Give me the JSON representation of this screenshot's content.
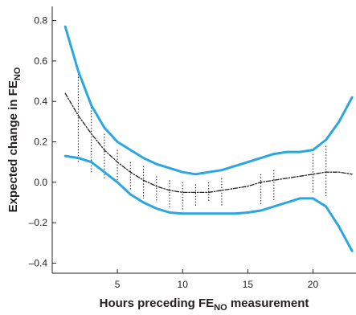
{
  "chart_data": {
    "type": "line",
    "xlabel": {
      "main": "Hours preceding FE",
      "sub": "NO",
      "suffix": " measurement"
    },
    "ylabel": {
      "main": "Expected change in FE",
      "sub": "NO"
    },
    "xlim": [
      0,
      23.3
    ],
    "ylim": [
      -0.45,
      0.87
    ],
    "xticks": [
      5,
      10,
      15,
      20
    ],
    "xtick_labels": [
      "5",
      "10",
      "15",
      "20"
    ],
    "yticks": [
      0.8,
      0.6,
      0.4,
      0.2,
      0.0,
      -0.2,
      -0.4
    ],
    "ytick_labels": [
      "0.8",
      "0.6",
      "0.4",
      "0.2",
      "0.0",
      "–0.2",
      "–0.4"
    ],
    "grid": false,
    "colors": {
      "ci": "#2aa6e0",
      "estimate": "#231f20",
      "axis": "#231f20"
    },
    "series": [
      {
        "style": "solid-blue",
        "x": [
          1,
          2,
          3,
          4,
          5,
          6,
          7,
          8,
          9,
          10,
          11,
          12,
          13,
          14,
          15,
          16,
          17,
          18,
          19,
          20,
          21,
          22,
          23
        ],
        "values": [
          0.77,
          0.55,
          0.38,
          0.27,
          0.2,
          0.16,
          0.12,
          0.09,
          0.07,
          0.05,
          0.04,
          0.05,
          0.06,
          0.08,
          0.1,
          0.12,
          0.14,
          0.15,
          0.15,
          0.16,
          0.21,
          0.3,
          0.42
        ]
      },
      {
        "style": "dashed-black",
        "x": [
          1,
          2,
          3,
          4,
          5,
          6,
          7,
          8,
          9,
          10,
          11,
          12,
          13,
          14,
          15,
          16,
          17,
          18,
          19,
          20,
          21,
          22,
          23
        ],
        "values": [
          0.44,
          0.33,
          0.24,
          0.16,
          0.1,
          0.05,
          0.01,
          -0.02,
          -0.04,
          -0.05,
          -0.05,
          -0.05,
          -0.04,
          -0.03,
          -0.02,
          0.0,
          0.01,
          0.02,
          0.03,
          0.04,
          0.05,
          0.05,
          0.04
        ]
      },
      {
        "style": "solid-blue",
        "x": [
          1,
          2,
          3,
          4,
          5,
          6,
          7,
          8,
          9,
          10,
          11,
          12,
          13,
          14,
          15,
          16,
          17,
          18,
          19,
          20,
          21,
          22,
          23
        ],
        "values": [
          0.13,
          0.12,
          0.1,
          0.05,
          0.0,
          -0.06,
          -0.1,
          -0.13,
          -0.15,
          -0.155,
          -0.155,
          -0.155,
          -0.155,
          -0.155,
          -0.15,
          -0.14,
          -0.12,
          -0.1,
          -0.08,
          -0.08,
          -0.12,
          -0.22,
          -0.34
        ]
      }
    ],
    "dotted_bars": [
      {
        "x": 2,
        "low": 0.1,
        "high": 0.55
      },
      {
        "x": 3,
        "low": 0.05,
        "high": 0.37
      },
      {
        "x": 4,
        "low": 0.02,
        "high": 0.24
      },
      {
        "x": 5,
        "low": -0.01,
        "high": 0.16
      },
      {
        "x": 6,
        "low": -0.04,
        "high": 0.1
      },
      {
        "x": 7,
        "low": -0.08,
        "high": 0.08
      },
      {
        "x": 8,
        "low": -0.1,
        "high": 0.03
      },
      {
        "x": 9,
        "low": -0.13,
        "high": 0.01
      },
      {
        "x": 10,
        "low": -0.14,
        "high": 0.0
      },
      {
        "x": 11,
        "low": -0.12,
        "high": -0.01
      },
      {
        "x": 12,
        "low": -0.1,
        "high": 0.0
      },
      {
        "x": 13,
        "low": -0.12,
        "high": 0.02
      },
      {
        "x": 16,
        "low": -0.11,
        "high": 0.04
      },
      {
        "x": 17,
        "low": -0.09,
        "high": 0.06
      },
      {
        "x": 20,
        "low": -0.05,
        "high": 0.14
      },
      {
        "x": 21,
        "low": -0.07,
        "high": 0.18
      }
    ]
  }
}
